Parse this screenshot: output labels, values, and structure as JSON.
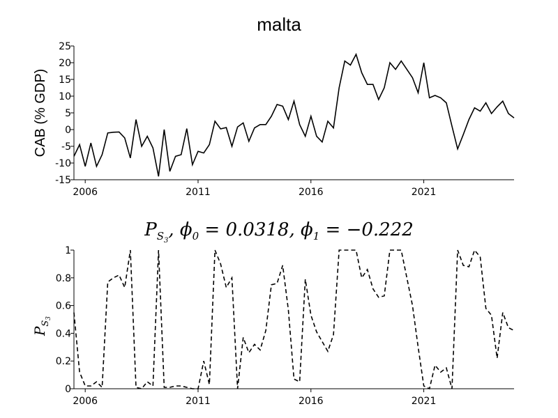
{
  "chart_data": [
    {
      "type": "line",
      "title": "malta",
      "ylabel": "CAB (% GDP)",
      "xlim": [
        2005.5,
        2025.0
      ],
      "ylim": [
        -15,
        25
      ],
      "yticks": [
        -15,
        -10,
        -5,
        0,
        5,
        10,
        15,
        20,
        25
      ],
      "xticks": [
        2006,
        2011,
        2016,
        2021
      ],
      "line_color": "#000000",
      "line_style": "solid",
      "series": [
        {
          "x": [
            2005.5,
            2005.75,
            2006.0,
            2006.25,
            2006.5,
            2006.75,
            2007.0,
            2007.25,
            2007.5,
            2007.75,
            2008.0,
            2008.25,
            2008.5,
            2008.75,
            2009.0,
            2009.25,
            2009.5,
            2009.75,
            2010.0,
            2010.25,
            2010.5,
            2010.75,
            2011.0,
            2011.25,
            2011.5,
            2011.75,
            2012.0,
            2012.25,
            2012.5,
            2012.75,
            2013.0,
            2013.25,
            2013.5,
            2013.75,
            2014.0,
            2014.25,
            2014.5,
            2014.75,
            2015.0,
            2015.25,
            2015.5,
            2015.75,
            2016.0,
            2016.25,
            2016.5,
            2016.75,
            2017.0,
            2017.25,
            2017.5,
            2017.75,
            2018.0,
            2018.25,
            2018.5,
            2018.75,
            2019.0,
            2019.25,
            2019.5,
            2019.75,
            2020.0,
            2020.25,
            2020.5,
            2020.75,
            2021.0,
            2021.25,
            2021.5,
            2021.75,
            2022.0,
            2022.25,
            2022.5,
            2022.75,
            2023.0,
            2023.25,
            2023.5,
            2023.75,
            2024.0,
            2024.25,
            2024.5,
            2024.75,
            2025.0
          ],
          "values": [
            -8,
            -4.5,
            -11,
            -4,
            -11,
            -7.5,
            -1,
            -0.8,
            -0.7,
            -2.5,
            -8.5,
            3,
            -5,
            -2,
            -5.5,
            -14,
            0,
            -12.5,
            -8,
            -7.5,
            0.3,
            -10.5,
            -6.5,
            -7,
            -4.5,
            2.5,
            0.2,
            0.6,
            -5,
            0.8,
            2,
            -3.5,
            0.5,
            1.5,
            1.5,
            4,
            7.5,
            7,
            3,
            8.5,
            1.5,
            -2,
            4,
            -2,
            -3.7,
            2.5,
            0.5,
            12.5,
            20.5,
            19.3,
            22.5,
            17,
            13.5,
            13.5,
            9,
            12.5,
            20,
            18,
            20.5,
            18,
            15.5,
            11,
            20,
            9.5,
            10.2,
            9.5,
            8,
            1,
            -5.8,
            -1.5,
            3,
            6.5,
            5.5,
            8,
            4.8,
            6.8,
            8.5,
            4.8,
            3.5
          ]
        }
      ]
    },
    {
      "type": "line",
      "title_parts": {
        "main": "P",
        "sub": "S",
        "subsub": "3",
        "rest": ", ϕ",
        "phi0_sub": "0",
        "phi0_val": " = 0.0318, ϕ",
        "phi1_sub": "1",
        "phi1_val": " = −0.222"
      },
      "ylabel_parts": {
        "main": "P",
        "sub": "S",
        "subsub": "3"
      },
      "xlim": [
        2005.5,
        2025.0
      ],
      "ylim": [
        0,
        1
      ],
      "yticks": [
        0,
        0.2,
        0.4,
        0.6,
        0.8,
        1
      ],
      "ytick_labels": [
        "0",
        "0.2",
        "0.4",
        "0.6",
        "0.8",
        "1"
      ],
      "xticks": [
        2006,
        2011,
        2016,
        2021
      ],
      "line_color": "#000000",
      "line_style": "dashed",
      "series": [
        {
          "x": [
            2005.5,
            2005.75,
            2006.0,
            2006.25,
            2006.5,
            2006.75,
            2007.0,
            2007.25,
            2007.5,
            2007.75,
            2008.0,
            2008.25,
            2008.5,
            2008.75,
            2009.0,
            2009.25,
            2009.5,
            2009.75,
            2010.0,
            2010.25,
            2010.5,
            2010.75,
            2011.0,
            2011.25,
            2011.5,
            2011.75,
            2012.0,
            2012.25,
            2012.5,
            2012.75,
            2013.0,
            2013.25,
            2013.5,
            2013.75,
            2014.0,
            2014.25,
            2014.5,
            2014.75,
            2015.0,
            2015.25,
            2015.5,
            2015.75,
            2016.0,
            2016.25,
            2016.5,
            2016.75,
            2017.0,
            2017.25,
            2017.5,
            2017.75,
            2018.0,
            2018.25,
            2018.5,
            2018.75,
            2019.0,
            2019.25,
            2019.5,
            2019.75,
            2020.0,
            2020.25,
            2020.5,
            2020.75,
            2021.0,
            2021.25,
            2021.5,
            2021.75,
            2022.0,
            2022.25,
            2022.5,
            2022.75,
            2023.0,
            2023.25,
            2023.5,
            2023.75,
            2024.0,
            2024.25,
            2024.5,
            2024.75,
            2025.0
          ],
          "values": [
            0.55,
            0.12,
            0.02,
            0.02,
            0.05,
            0.01,
            0.77,
            0.8,
            0.82,
            0.73,
            1.0,
            0.01,
            0.0,
            0.05,
            0.02,
            1.0,
            0.01,
            0.01,
            0.02,
            0.02,
            0.01,
            0.0,
            0.0,
            0.2,
            0.03,
            1.0,
            0.9,
            0.73,
            0.8,
            0.0,
            0.37,
            0.26,
            0.32,
            0.28,
            0.42,
            0.75,
            0.76,
            0.89,
            0.57,
            0.07,
            0.05,
            0.79,
            0.53,
            0.41,
            0.34,
            0.27,
            0.39,
            1.0,
            1.0,
            1.0,
            1.0,
            0.8,
            0.86,
            0.72,
            0.66,
            0.67,
            1.0,
            1.0,
            1.0,
            0.8,
            0.6,
            0.3,
            0.02,
            0.0,
            0.17,
            0.12,
            0.15,
            0.0,
            1.0,
            0.89,
            0.88,
            1.0,
            0.95,
            0.58,
            0.53,
            0.22,
            0.55,
            0.44,
            0.42
          ]
        }
      ]
    }
  ]
}
